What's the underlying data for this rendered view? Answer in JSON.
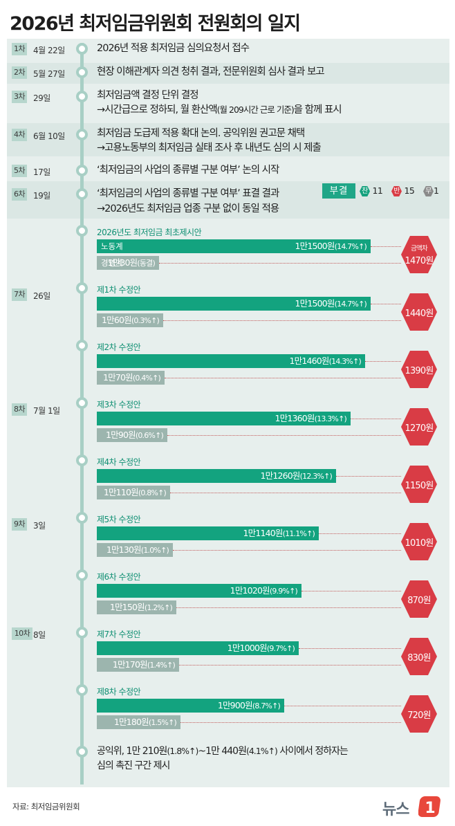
{
  "title": "2026년 최저임금위원회 전원회의 일지",
  "colors": {
    "labor": "#13a37f",
    "management": "#9cb5ae",
    "gap": "#d93c45",
    "timeline": "#a8cfc5"
  },
  "sessions": [
    {
      "badge": "1차",
      "date": "4월 22일",
      "lines": [
        "2026년 적용 최저임금 심의요청서 접수"
      ]
    },
    {
      "badge": "2차",
      "date": "5월 27일",
      "lines": [
        "현장 이해관계자 의견 청취 결과, 전문위원회 심사 결과 보고"
      ]
    },
    {
      "badge": "3차",
      "date": "29일",
      "lines": [
        "최저임금액 결정 단위 결정",
        "→시간급으로 정하되, 월 환산액",
        "(월 209시간 근로 기준)",
        "을 함께 표시"
      ]
    },
    {
      "badge": "4차",
      "date": "6월 10일",
      "lines": [
        "최저임금 도급제 적용 확대 논의. 공익위원 권고문 채택",
        "→고용노동부의 최저임금 실태 조사 후 내년도 심의 시 제출"
      ]
    },
    {
      "badge": "5차",
      "date": "17일",
      "lines": [
        "‘최저임금의 사업의 종류별 구분 여부’ 논의 시작"
      ]
    },
    {
      "badge": "6차",
      "date": "19일",
      "lines": [
        "‘최저임금의 사업의 종류별 구분 여부’ 표결 결과",
        "→2026년도 최저임금 업종 구분 없이 동일 적용"
      ]
    },
    {
      "badge": "7차",
      "date": "26일"
    },
    {
      "badge": "8차",
      "date": "7월 1일"
    },
    {
      "badge": "9차",
      "date": "3일"
    },
    {
      "badge": "10차",
      "date": "8일"
    }
  ],
  "vote": {
    "result": "부결",
    "for_label": "찬",
    "for": "11",
    "against_label": "반",
    "against": "15",
    "abstain_label": "무",
    "abstain": "1"
  },
  "chart_data": {
    "type": "bar",
    "series_labels": {
      "labor": "노동계",
      "management": "경영계"
    },
    "gap_label": "금액차",
    "proposals": [
      {
        "name": "2026년도 최저임금 최초제시안",
        "labor": 11500,
        "labor_text": "1만1500원",
        "labor_pct": "(14.7%↑)",
        "management": 10030,
        "management_text": "1만30원",
        "management_pct": "(동결)",
        "gap": 1470,
        "gap_text": "1470원"
      },
      {
        "name": "제1차 수정안",
        "labor": 11500,
        "labor_text": "1만1500원",
        "labor_pct": "(14.7%↑)",
        "management": 10060,
        "management_text": "1만60원",
        "management_pct": "(0.3%↑)",
        "gap": 1440,
        "gap_text": "1440원"
      },
      {
        "name": "제2차 수정안",
        "labor": 11460,
        "labor_text": "1만1460원",
        "labor_pct": "(14.3%↑)",
        "management": 10070,
        "management_text": "1만70원",
        "management_pct": "(0.4%↑)",
        "gap": 1390,
        "gap_text": "1390원"
      },
      {
        "name": "제3차 수정안",
        "labor": 11360,
        "labor_text": "1만1360원",
        "labor_pct": "(13.3%↑)",
        "management": 10090,
        "management_text": "1만90원",
        "management_pct": "(0.6%↑)",
        "gap": 1270,
        "gap_text": "1270원"
      },
      {
        "name": "제4차 수정안",
        "labor": 11260,
        "labor_text": "1만1260원",
        "labor_pct": "(12.3%↑)",
        "management": 10110,
        "management_text": "1만110원",
        "management_pct": "(0.8%↑)",
        "gap": 1150,
        "gap_text": "1150원"
      },
      {
        "name": "제5차 수정안",
        "labor": 11140,
        "labor_text": "1만1140원",
        "labor_pct": "(11.1%↑)",
        "management": 10130,
        "management_text": "1만130원",
        "management_pct": "(1.0%↑)",
        "gap": 1010,
        "gap_text": "1010원"
      },
      {
        "name": "제6차 수정안",
        "labor": 11020,
        "labor_text": "1만1020원",
        "labor_pct": "(9.9%↑)",
        "management": 10150,
        "management_text": "1만150원",
        "management_pct": "(1.2%↑)",
        "gap": 870,
        "gap_text": "870원"
      },
      {
        "name": "제7차 수정안",
        "labor": 11000,
        "labor_text": "1만1000원",
        "labor_pct": "(9.7%↑)",
        "management": 10170,
        "management_text": "1만170원",
        "management_pct": "(1.4%↑)",
        "gap": 830,
        "gap_text": "830원"
      },
      {
        "name": "제8차 수정안",
        "labor": 10900,
        "labor_text": "1만900원",
        "labor_pct": "(8.7%↑)",
        "management": 10180,
        "management_text": "1만180원",
        "management_pct": "(1.5%↑)",
        "gap": 720,
        "gap_text": "720원"
      }
    ]
  },
  "final": {
    "line1_a": "공익위, 1만 210원",
    "line1_b": "(1.8%↑)",
    "line1_c": "~1만 440원",
    "line1_d": "(4.1%↑)",
    "line1_e": " 사이에서 정하자는",
    "line2": "심의 촉진 구간 제시"
  },
  "source": "자료: 최저임금위원회",
  "logo": {
    "text": "뉴스",
    "mark": "1"
  }
}
